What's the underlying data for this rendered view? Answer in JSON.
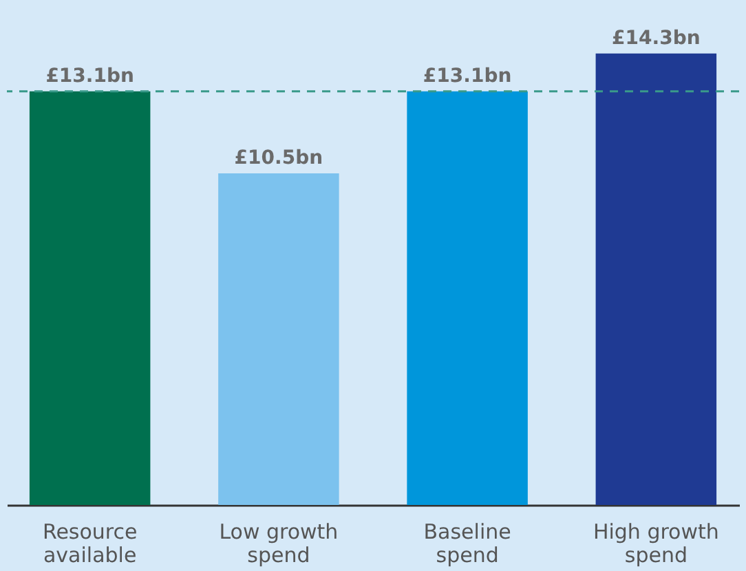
{
  "chart_data": {
    "type": "bar",
    "categories": [
      "Resource available",
      "Low growth spend",
      "Baseline spend",
      "High growth spend"
    ],
    "values": [
      13.1,
      10.5,
      13.1,
      14.3
    ],
    "colors": [
      "#00704f",
      "#7cc2ee",
      "#0096db",
      "#1f3a93"
    ],
    "value_labels": [
      "£13.1bn",
      "£10.5bn",
      "£13.1bn",
      "£14.3bn"
    ],
    "ref_lines": [
      {
        "axis": "y",
        "value": 13.1,
        "color": "#3a9a8a",
        "line_style": "dashed"
      }
    ],
    "grid": false,
    "legend": false
  }
}
